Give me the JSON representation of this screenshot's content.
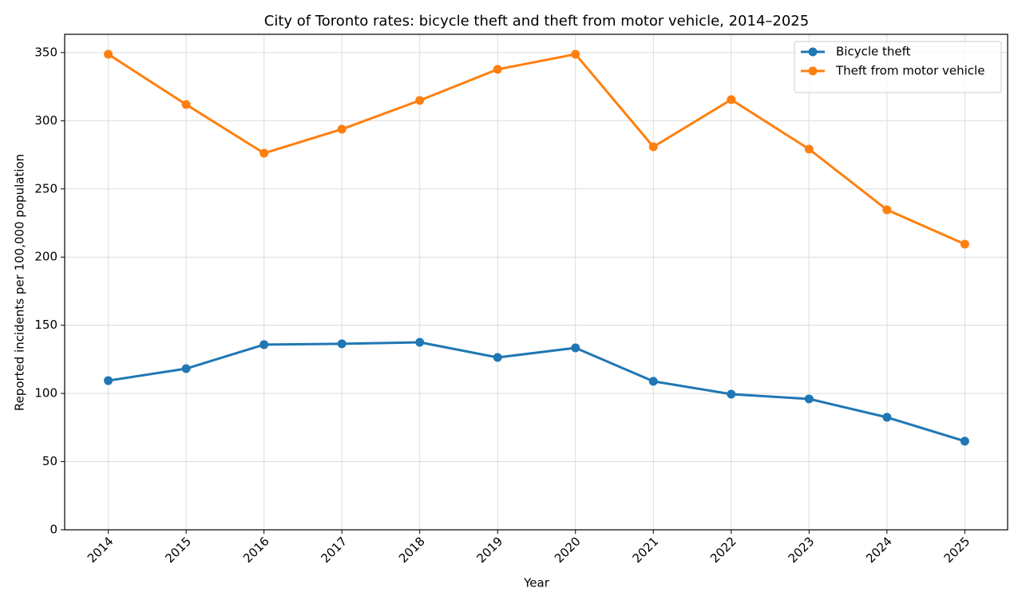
{
  "chart_data": {
    "type": "line",
    "title": "City of Toronto rates: bicycle theft and theft from motor vehicle, 2014–2025",
    "x_label": "Year",
    "y_label": "Reported incidents per 100,000 population",
    "x": [
      2014,
      2015,
      2016,
      2017,
      2018,
      2019,
      2020,
      2021,
      2022,
      2023,
      2024,
      2025
    ],
    "series": [
      {
        "name": "Bicycle theft",
        "color": "#1f77b4",
        "values": [
          109.4,
          118.2,
          135.8,
          136.4,
          137.5,
          126.4,
          133.4,
          108.9,
          99.5,
          96.0,
          82.5,
          65.0
        ]
      },
      {
        "name": "Theft from motor vehicle",
        "color": "#ff7f0e",
        "values": [
          348.8,
          311.9,
          276.2,
          293.8,
          314.9,
          337.7,
          348.8,
          280.9,
          315.5,
          279.2,
          234.7,
          209.5
        ]
      }
    ],
    "xlim": [
      2013.44,
      2025.55
    ],
    "xticks": [
      2014,
      2015,
      2016,
      2017,
      2018,
      2019,
      2020,
      2021,
      2022,
      2023,
      2024,
      2025
    ],
    "ylim": [
      0,
      363.4
    ],
    "yticks": [
      0,
      50,
      100,
      150,
      200,
      250,
      300,
      350
    ],
    "grid": true,
    "legend": "upper right"
  }
}
